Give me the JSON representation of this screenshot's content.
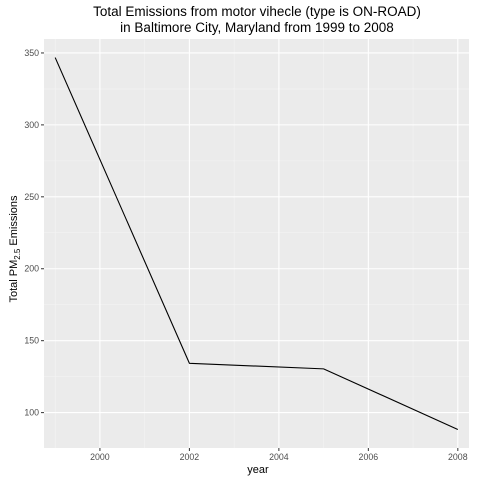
{
  "chart_data": {
    "type": "line",
    "title": "Total Emissions from motor vihecle (type is ON-ROAD)",
    "subtitle": "in Baltimore City, Maryland from 1999 to 2008",
    "xlabel": "year",
    "ylabel": {
      "prefix": "Total PM",
      "subscript": "2.5",
      "suffix": " Emissions"
    },
    "x": [
      1999,
      2002,
      2005,
      2008
    ],
    "series": [
      {
        "values": [
          346.8,
          134.3,
          130.4,
          88.3
        ],
        "color": "#000000"
      }
    ],
    "xlim": [
      1998.75,
      2008.25
    ],
    "ylim": [
      75.4,
      359.7
    ],
    "x_ticks": [
      2000,
      2002,
      2004,
      2006,
      2008
    ],
    "x_tick_labels": [
      "2000",
      "2002",
      "2004",
      "2006",
      "2008"
    ],
    "y_ticks": [
      100,
      150,
      200,
      250,
      300,
      350
    ],
    "y_tick_labels": [
      "100",
      "150",
      "200",
      "250",
      "300",
      "350"
    ],
    "x_minor_ticks": [
      1999,
      2001,
      2003,
      2005,
      2007
    ],
    "y_minor_ticks": [
      125,
      175,
      225,
      275,
      325
    ],
    "grid": true,
    "legend": "none",
    "colors": {
      "panel_background": "#ebebeb",
      "grid_major": "#ffffff",
      "grid_minor": "#f5f5f5",
      "tick_label": "#4d4d4d",
      "tick_mark": "#333333"
    }
  }
}
